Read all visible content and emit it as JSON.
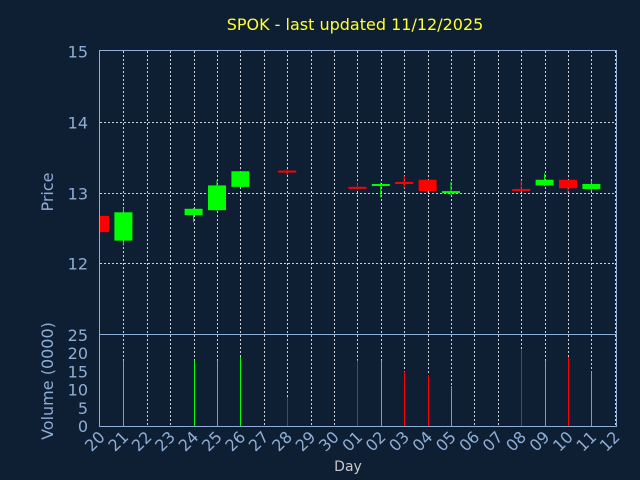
{
  "chart_data": [
    {
      "type": "candlestick",
      "title": "SPOK - last updated 11/12/2025",
      "ylabel": "Price",
      "ylim": [
        11,
        15
      ],
      "yticks": [
        "15",
        "14",
        "13",
        "12"
      ],
      "grid": true,
      "up_color": "#00ff00",
      "down_color": "#ff0000",
      "x": [
        "20",
        "21",
        "22",
        "23",
        "24",
        "25",
        "26",
        "27",
        "28",
        "29",
        "30",
        "01",
        "02",
        "03",
        "04",
        "05",
        "06",
        "07",
        "08",
        "09",
        "10",
        "11",
        "12"
      ],
      "candles": [
        {
          "x": "20",
          "open": 12.67,
          "high": 12.67,
          "low": 12.43,
          "close": 12.44
        },
        {
          "x": "21",
          "open": 12.32,
          "high": 12.78,
          "low": 12.25,
          "close": 12.72
        },
        {
          "x": "24",
          "open": 12.68,
          "high": 12.78,
          "low": 12.58,
          "close": 12.77
        },
        {
          "x": "25",
          "open": 12.75,
          "high": 13.17,
          "low": 12.74,
          "close": 13.1
        },
        {
          "x": "26",
          "open": 13.08,
          "high": 13.3,
          "low": 13.07,
          "close": 13.3
        },
        {
          "x": "28",
          "open": 13.31,
          "high": 13.33,
          "low": 13.25,
          "close": 13.29
        },
        {
          "x": "01",
          "open": 13.08,
          "high": 13.14,
          "low": 13.04,
          "close": 13.07
        },
        {
          "x": "02",
          "open": 13.11,
          "high": 13.14,
          "low": 12.93,
          "close": 13.12
        },
        {
          "x": "03",
          "open": 13.15,
          "high": 13.24,
          "low": 13.06,
          "close": 13.12
        },
        {
          "x": "04",
          "open": 13.18,
          "high": 13.18,
          "low": 13.0,
          "close": 13.02
        },
        {
          "x": "05",
          "open": 13.0,
          "high": 13.15,
          "low": 12.96,
          "close": 13.02
        },
        {
          "x": "08",
          "open": 13.05,
          "high": 13.17,
          "low": 13.01,
          "close": 13.03
        },
        {
          "x": "09",
          "open": 13.1,
          "high": 13.27,
          "low": 13.09,
          "close": 13.18
        },
        {
          "x": "10",
          "open": 13.18,
          "high": 13.18,
          "low": 13.0,
          "close": 13.06
        },
        {
          "x": "11",
          "open": 13.05,
          "high": 13.17,
          "low": 13.02,
          "close": 13.12
        }
      ]
    },
    {
      "type": "bar",
      "ylabel": "Volume (0000)",
      "xlabel": "Day",
      "ylim": [
        0,
        25
      ],
      "yticks": [
        "25",
        "20",
        "15",
        "10",
        "5",
        "0"
      ],
      "xticks": [
        "20",
        "21",
        "22",
        "23",
        "24",
        "25",
        "26",
        "27",
        "28",
        "29",
        "30",
        "01",
        "02",
        "03",
        "04",
        "05",
        "06",
        "07",
        "08",
        "09",
        "10",
        "11",
        "12"
      ],
      "bars": [
        {
          "x": "21",
          "value": 18,
          "color": "#00ff00"
        },
        {
          "x": "24",
          "value": 18,
          "color": "#00ff00"
        },
        {
          "x": "25",
          "value": 18,
          "color": "#00ff00"
        },
        {
          "x": "26",
          "value": 19,
          "color": "#00ff00"
        },
        {
          "x": "28",
          "value": 8,
          "color": "#ff0000"
        },
        {
          "x": "01",
          "value": 18,
          "color": "#ff0000"
        },
        {
          "x": "02",
          "value": 18,
          "color": "#00ff00"
        },
        {
          "x": "03",
          "value": 15,
          "color": "#ff0000"
        },
        {
          "x": "04",
          "value": 14,
          "color": "#ff0000"
        },
        {
          "x": "05",
          "value": 11,
          "color": "#00ff00"
        },
        {
          "x": "08",
          "value": 21,
          "color": "#ff0000"
        },
        {
          "x": "09",
          "value": 18,
          "color": "#00ff00"
        },
        {
          "x": "10",
          "value": 19,
          "color": "#ff0000"
        },
        {
          "x": "11",
          "value": 15,
          "color": "#00ff00"
        }
      ]
    }
  ]
}
